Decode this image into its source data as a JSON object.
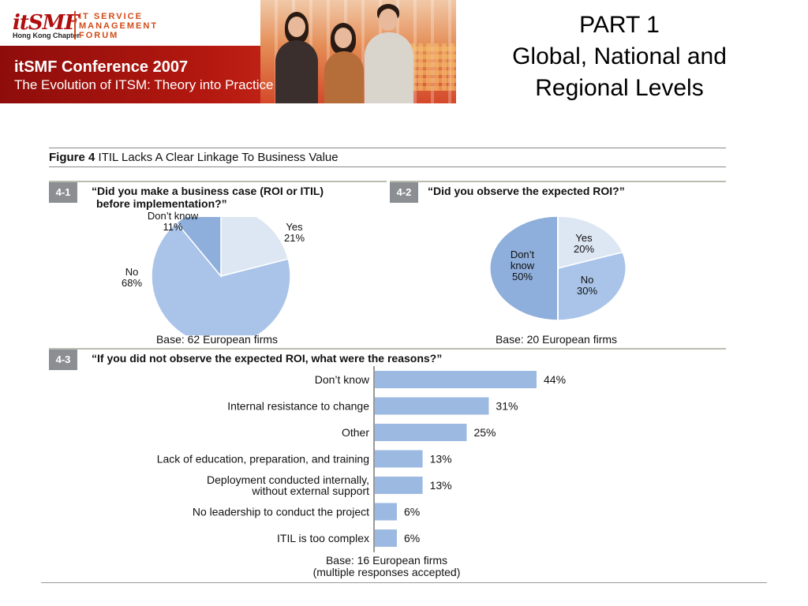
{
  "banner": {
    "logo_mark": "itSMF",
    "logo_sub": "Hong Kong Chapter",
    "logo_lines": [
      "IT SERVICE",
      "MANAGEMENT",
      "FORUM"
    ],
    "conference_title": "itSMF Conference 2007",
    "conference_subtitle": "The Evolution of ITSM: Theory into Practice"
  },
  "heading": {
    "line1": "PART 1",
    "line2": "Global, National and",
    "line3": "Regional Levels"
  },
  "figure": {
    "number": "Figure 4",
    "title": "ITIL Lacks A Clear Linkage To Business Value"
  },
  "colors": {
    "light": "#dde6f3",
    "mid": "#a9c4e8",
    "dark": "#8eaedb",
    "bar": "#9bb9e1",
    "tag": "#8b8f93"
  },
  "chart_data": [
    {
      "type": "pie",
      "tag": "4-1",
      "question_line1": "“Did you make a business case (ROI or ITIL)",
      "question_line2": "before implementation?”",
      "slices": [
        {
          "label": "Yes",
          "value": 21,
          "value_text": "21%"
        },
        {
          "label": "No",
          "value": 68,
          "value_text": "68%"
        },
        {
          "label": "Don’t know",
          "value": 11,
          "value_text": "11%"
        }
      ],
      "base": "Base: 62 European firms"
    },
    {
      "type": "pie",
      "tag": "4-2",
      "question": "“Did you observe the expected ROI?”",
      "slices": [
        {
          "label": "Yes",
          "value": 20,
          "value_text": "20%"
        },
        {
          "label": "No",
          "value": 30,
          "value_text": "30%"
        },
        {
          "label": "Don’t know",
          "value": 50,
          "value_text": "50%"
        }
      ],
      "base": "Base: 20 European firms"
    },
    {
      "type": "bar",
      "orientation": "horizontal",
      "tag": "4-3",
      "question": "“If you did not observe the expected ROI, what were the reasons?”",
      "categories": [
        [
          "Don’t know"
        ],
        [
          "Internal resistance to change"
        ],
        [
          "Other"
        ],
        [
          "Lack of education, preparation, and training"
        ],
        [
          "Deployment conducted internally,",
          "without external support"
        ],
        [
          "No leadership to conduct the project"
        ],
        [
          "ITIL is too complex"
        ]
      ],
      "values": [
        44,
        31,
        25,
        13,
        13,
        6,
        6
      ],
      "value_labels": [
        "44%",
        "31%",
        "25%",
        "13%",
        "13%",
        "6%",
        "6%"
      ],
      "base_line1": "Base: 16 European firms",
      "base_line2": "(multiple responses accepted)"
    }
  ]
}
